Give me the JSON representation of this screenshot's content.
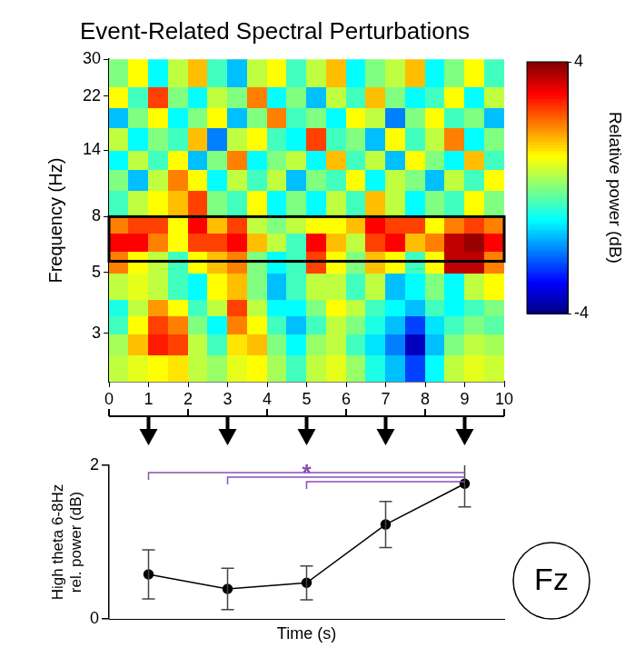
{
  "chart_data": [
    {
      "type": "heatmap",
      "title": "Event-Related Spectral Perturbations",
      "y_label": "Frequency (Hz)",
      "x_edges": [
        0,
        0.5,
        1,
        1.5,
        2,
        2.5,
        3,
        3.5,
        4,
        4.5,
        5,
        5.5,
        6,
        6.5,
        7,
        7.5,
        8,
        8.5,
        9,
        9.5,
        10
      ],
      "y_edges": [
        2,
        2.5,
        3,
        3.5,
        4,
        5,
        6,
        7,
        8,
        10,
        12,
        14,
        17,
        20,
        24,
        30
      ],
      "cells": [
        [
          0.5,
          0.8,
          1.0,
          1.2,
          0.5,
          0.2,
          0.8,
          1.0,
          0.3,
          -0.5,
          0.5,
          0.8,
          0.2,
          -0.8,
          -1.5,
          -2.5,
          -1.0,
          0.5,
          0.8,
          0.6
        ],
        [
          0.3,
          1.5,
          2.8,
          2.5,
          0.5,
          -0.5,
          1.2,
          1.5,
          0.0,
          -1.0,
          0.2,
          0.5,
          -0.5,
          -1.2,
          -2.0,
          -3.5,
          -1.5,
          0.0,
          0.5,
          0.3
        ],
        [
          -0.5,
          1.0,
          2.5,
          2.0,
          0.0,
          -1.0,
          2.0,
          1.0,
          -0.5,
          -1.5,
          -0.5,
          0.5,
          0.0,
          -0.8,
          -1.5,
          -2.5,
          -1.2,
          -0.5,
          0.0,
          -0.3
        ],
        [
          -0.8,
          0.5,
          1.8,
          1.0,
          -0.5,
          0.5,
          2.5,
          0.5,
          -1.0,
          -1.0,
          0.0,
          1.0,
          0.5,
          -0.5,
          -1.0,
          -1.5,
          -0.5,
          -1.0,
          -0.5,
          0.0
        ],
        [
          0.5,
          0.8,
          0.5,
          -0.5,
          -1.0,
          1.0,
          1.5,
          0.0,
          -1.5,
          -0.5,
          0.5,
          0.5,
          -0.5,
          0.5,
          -1.5,
          -1.0,
          0.0,
          -1.0,
          0.5,
          1.0
        ],
        [
          2.0,
          1.0,
          0.5,
          -0.5,
          1.0,
          1.5,
          2.0,
          0.0,
          -1.0,
          -0.5,
          2.5,
          1.0,
          0.0,
          1.5,
          1.0,
          -0.5,
          1.0,
          3.5,
          3.5,
          2.0
        ],
        [
          3.0,
          3.0,
          2.0,
          1.0,
          2.5,
          2.5,
          3.0,
          1.5,
          0.5,
          -0.5,
          3.0,
          1.5,
          0.5,
          2.5,
          3.0,
          1.5,
          2.0,
          3.5,
          3.8,
          3.0
        ],
        [
          2.0,
          2.5,
          2.5,
          1.0,
          3.0,
          1.5,
          2.5,
          0.5,
          0.0,
          0.5,
          1.0,
          1.0,
          1.5,
          3.0,
          2.5,
          2.5,
          1.0,
          2.0,
          2.5,
          2.0
        ],
        [
          -0.5,
          0.5,
          1.0,
          1.5,
          2.5,
          0.0,
          -0.5,
          1.0,
          -1.0,
          0.0,
          -1.0,
          0.5,
          -0.5,
          1.5,
          0.5,
          -1.0,
          0.0,
          -0.5,
          1.0,
          0.0
        ],
        [
          0.0,
          -1.5,
          0.5,
          2.0,
          1.0,
          -1.0,
          0.5,
          -0.5,
          0.5,
          -1.5,
          0.0,
          -0.5,
          1.0,
          -1.0,
          0.5,
          0.0,
          -1.5,
          0.5,
          -0.5,
          1.0
        ],
        [
          -1.0,
          0.5,
          -0.5,
          1.0,
          -1.5,
          0.0,
          2.0,
          -1.0,
          0.0,
          0.5,
          -1.0,
          1.5,
          -0.5,
          0.5,
          -1.5,
          1.0,
          0.0,
          -1.0,
          1.5,
          -0.5
        ],
        [
          0.5,
          -1.0,
          0.0,
          -0.5,
          1.5,
          -2.0,
          0.5,
          1.0,
          -0.5,
          -1.0,
          2.5,
          -0.5,
          0.0,
          -1.5,
          1.0,
          -0.5,
          0.5,
          2.0,
          -1.0,
          0.0
        ],
        [
          -1.5,
          0.0,
          1.0,
          -1.0,
          0.0,
          1.0,
          -1.5,
          0.0,
          2.0,
          -0.5,
          0.0,
          -1.0,
          1.0,
          0.5,
          -2.0,
          0.0,
          1.0,
          -0.5,
          0.0,
          -1.5
        ],
        [
          1.0,
          -0.5,
          2.5,
          0.0,
          -1.0,
          0.5,
          0.0,
          2.0,
          -1.0,
          0.0,
          -1.5,
          0.5,
          -0.5,
          1.5,
          0.0,
          -1.0,
          -0.5,
          1.0,
          -1.0,
          0.5
        ],
        [
          0.0,
          1.0,
          -1.0,
          0.5,
          1.5,
          -0.5,
          -1.5,
          0.5,
          1.0,
          -0.5,
          0.5,
          1.5,
          -1.0,
          0.0,
          0.5,
          1.5,
          -1.0,
          0.0,
          1.0,
          -0.5
        ]
      ],
      "xlim": [
        0,
        10
      ],
      "xticks": [
        0,
        1,
        2,
        3,
        4,
        5,
        6,
        7,
        8,
        9,
        10
      ],
      "ylim": [
        2,
        30
      ],
      "yticks": [
        3,
        5,
        8,
        14,
        22,
        30
      ],
      "log": "y",
      "band": [
        5.5,
        8
      ],
      "colorbar": {
        "label": "Relative power (dB)",
        "lim": [
          -4,
          4
        ],
        "ticks": [
          -4,
          4
        ]
      }
    },
    {
      "type": "line",
      "y_label": "High theta 6-8Hz rel. power (dB)",
      "x_label": "Time (s)",
      "x": [
        1,
        3,
        5,
        7,
        9
      ],
      "values": [
        0.58,
        0.39,
        0.47,
        1.23,
        1.76
      ],
      "errors": [
        0.32,
        0.27,
        0.22,
        0.3,
        0.3
      ],
      "xlim": [
        0,
        10
      ],
      "ylim": [
        0,
        2
      ],
      "yticks": [
        0,
        2
      ],
      "tick_labels": "y",
      "color": "#000000",
      "marker": "circle",
      "significance": {
        "label": "*",
        "pairs": [
          [
            1,
            9
          ],
          [
            3,
            9
          ],
          [
            5,
            9
          ]
        ],
        "color": "#8a4fb0"
      },
      "electrode": "Fz"
    }
  ]
}
